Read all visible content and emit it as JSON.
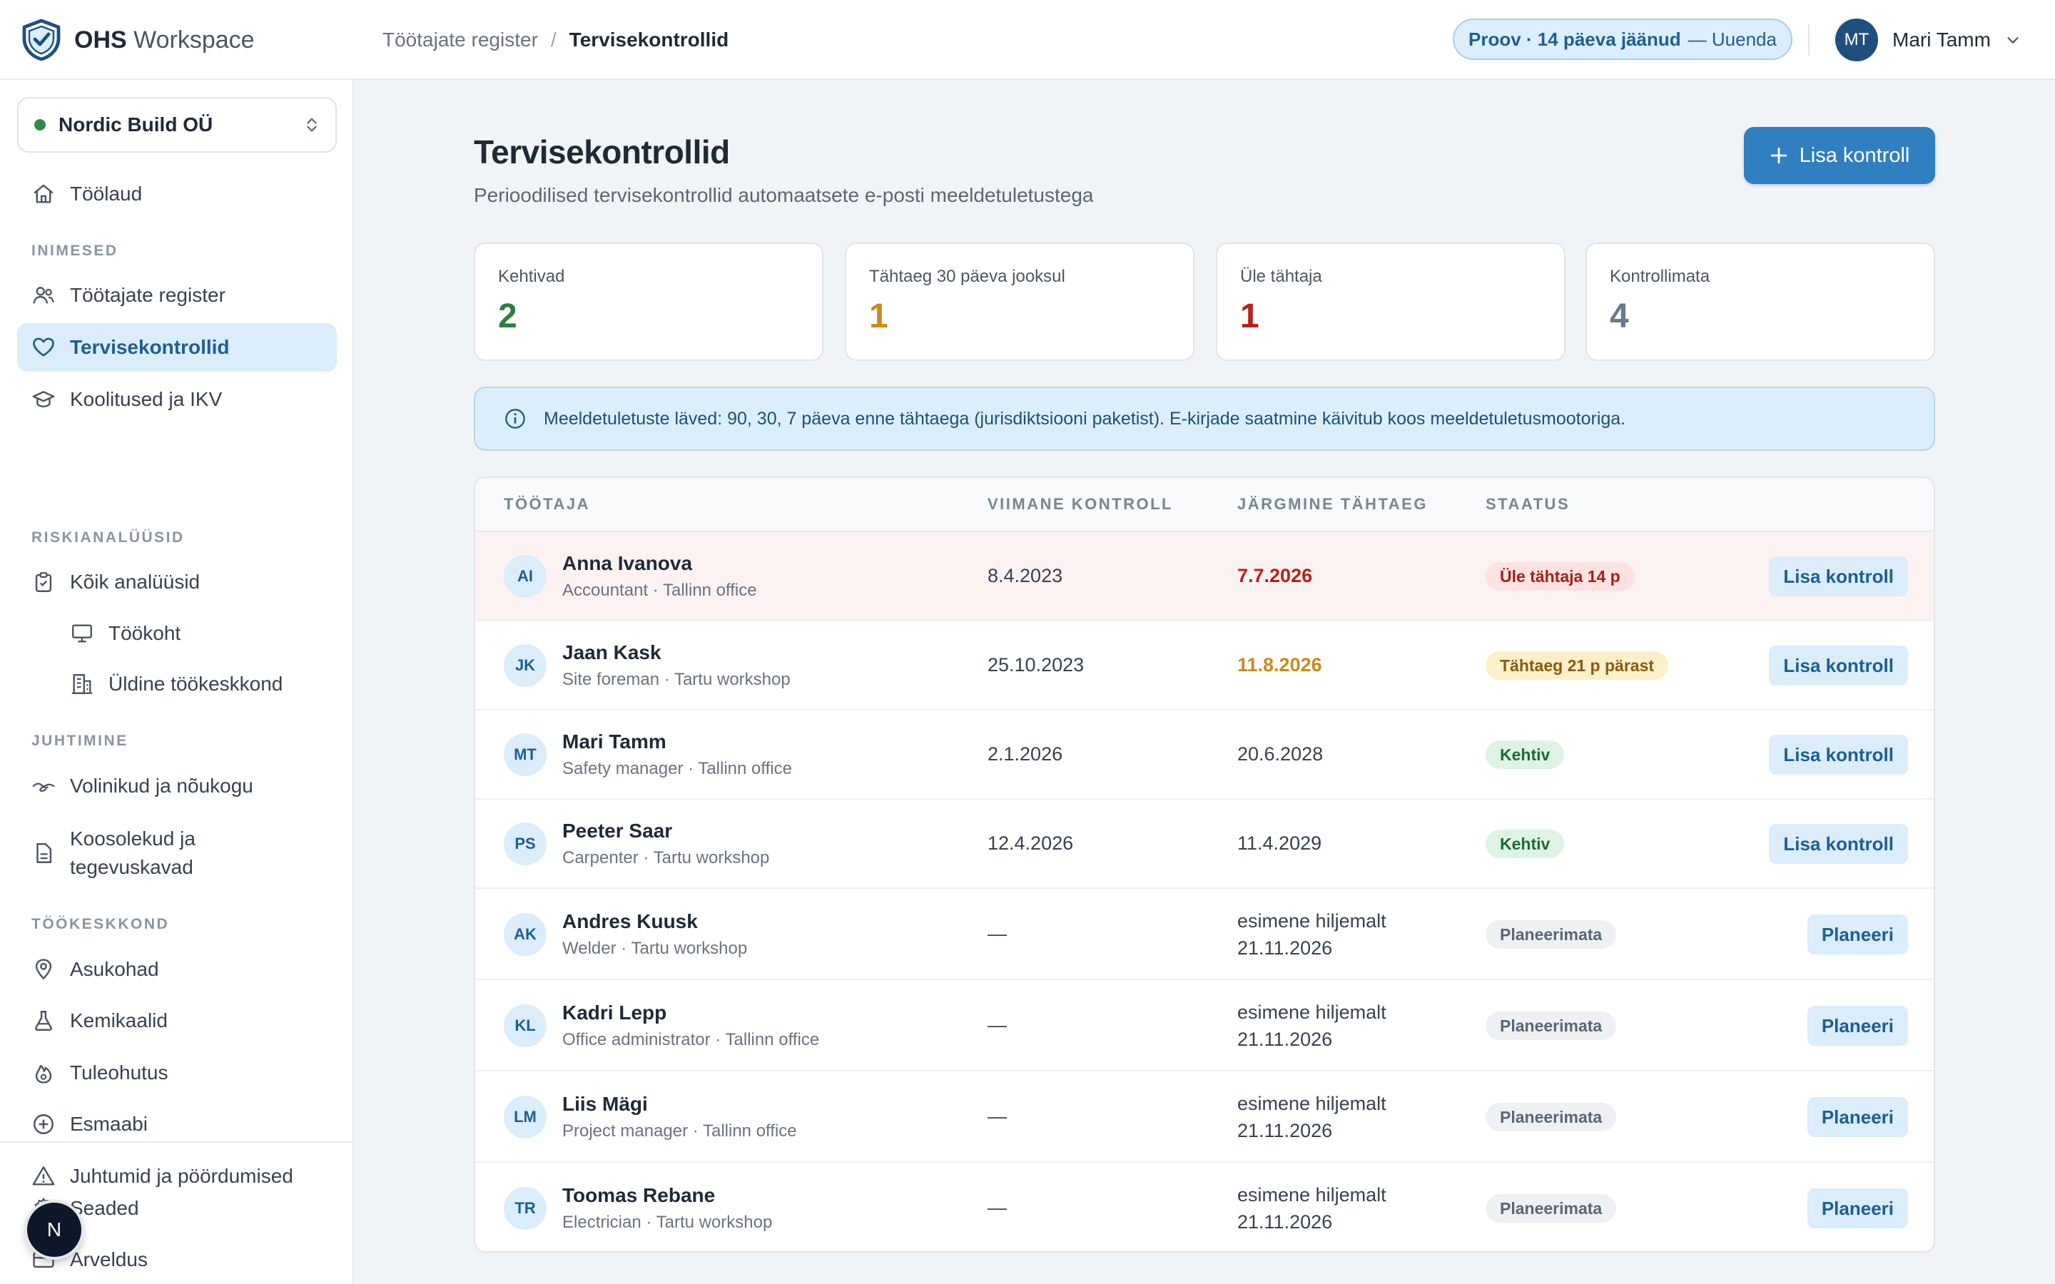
{
  "brand": {
    "name_bold": "OHS",
    "name_rest": "Workspace"
  },
  "breadcrumb": {
    "parent": "Töötajate register",
    "separator": "/",
    "current": "Tervisekontrollid"
  },
  "trial": {
    "text": "Proov · 14 päeva jäänud",
    "action": "— Uuenda"
  },
  "user": {
    "initials": "MT",
    "name": "Mari Tamm"
  },
  "sidebar": {
    "org": "Nordic Build OÜ",
    "dashboard": "Töölaud",
    "sections": {
      "people": "INIMESED",
      "risk": "RISKIANALÜÜSID",
      "management": "JUHTIMINE",
      "environment": "TÖÖKESKKOND"
    },
    "items": {
      "register": "Töötajate register",
      "health": "Tervisekontrollid",
      "training": "Koolitused ja IKV",
      "all_analyses": "Kõik analüüsid",
      "workplace": "Töökoht",
      "general_env": "Üldine töökeskkond",
      "reps": "Volinikud ja nõukogu",
      "meetings_1": "Koosolekud ja",
      "meetings_2": "tegevuskavad",
      "locations": "Asukohad",
      "chemicals": "Kemikaalid",
      "fire": "Tuleohutus",
      "first_aid": "Esmaabi",
      "incidents": "Juhtumid ja pöördumised",
      "settings": "Seaded",
      "billing": "Arveldus"
    },
    "float_badge": "N"
  },
  "page": {
    "title": "Tervisekontrollid",
    "subtitle": "Perioodilised tervisekontrollid automaatsete e-posti meeldetuletustega",
    "add_button": "Lisa kontroll"
  },
  "stats": [
    {
      "label": "Kehtivad",
      "value": "2",
      "color": "#2e7d3e"
    },
    {
      "label": "Tähtaeg 30 päeva jooksul",
      "value": "1",
      "color": "#c98a1a"
    },
    {
      "label": "Üle tähtaja",
      "value": "1",
      "color": "#b42318"
    },
    {
      "label": "Kontrollimata",
      "value": "4",
      "color": "#6b7a8c"
    }
  ],
  "info_banner": "Meeldetuletuste läved: 90, 30, 7 päeva enne tähtaega (jurisdiktsiooni paketist). E-kirjade saatmine käivitub koos meeldetuletusmootoriga.",
  "table": {
    "headers": {
      "employee": "TÖÖTAJA",
      "last": "VIIMANE KONTROLL",
      "next": "JÄRGMINE TÄHTAEG",
      "status": "STAATUS"
    },
    "rows": [
      {
        "initials": "AI",
        "name": "Anna Ivanova",
        "meta": "Accountant · Tallinn office",
        "last": "8.4.2023",
        "next": "7.7.2026",
        "next2": "",
        "status": "Üle tähtaja 14 p",
        "action": "Lisa kontroll"
      },
      {
        "initials": "JK",
        "name": "Jaan Kask",
        "meta": "Site foreman · Tartu workshop",
        "last": "25.10.2023",
        "next": "11.8.2026",
        "next2": "",
        "status": "Tähtaeg 21 p pärast",
        "action": "Lisa kontroll"
      },
      {
        "initials": "MT",
        "name": "Mari Tamm",
        "meta": "Safety manager · Tallinn office",
        "last": "2.1.2026",
        "next": "20.6.2028",
        "next2": "",
        "status": "Kehtiv",
        "action": "Lisa kontroll"
      },
      {
        "initials": "PS",
        "name": "Peeter Saar",
        "meta": "Carpenter · Tartu workshop",
        "last": "12.4.2026",
        "next": "11.4.2029",
        "next2": "",
        "status": "Kehtiv",
        "action": "Lisa kontroll"
      },
      {
        "initials": "AK",
        "name": "Andres Kuusk",
        "meta": "Welder · Tartu workshop",
        "last": "—",
        "next": "esimene hiljemalt",
        "next2": "21.11.2026",
        "status": "Planeerimata",
        "action": "Planeeri"
      },
      {
        "initials": "KL",
        "name": "Kadri Lepp",
        "meta": "Office administrator · Tallinn office",
        "last": "—",
        "next": "esimene hiljemalt",
        "next2": "21.11.2026",
        "status": "Planeerimata",
        "action": "Planeeri"
      },
      {
        "initials": "LM",
        "name": "Liis Mägi",
        "meta": "Project manager · Tallinn office",
        "last": "—",
        "next": "esimene hiljemalt",
        "next2": "21.11.2026",
        "status": "Planeerimata",
        "action": "Planeeri"
      },
      {
        "initials": "TR",
        "name": "Toomas Rebane",
        "meta": "Electrician · Tartu workshop",
        "last": "—",
        "next": "esimene hiljemalt",
        "next2": "21.11.2026",
        "status": "Planeerimata",
        "action": "Planeeri"
      }
    ]
  }
}
